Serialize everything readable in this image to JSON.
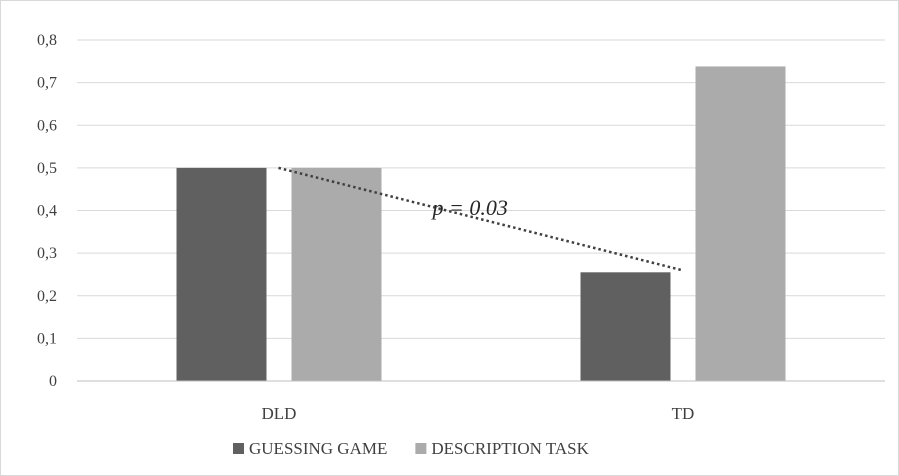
{
  "chart_data": {
    "type": "bar",
    "categories": [
      "DLD",
      "TD"
    ],
    "series": [
      {
        "name": "GUESSING GAME",
        "values": [
          0.5,
          0.255
        ],
        "color": "#606060"
      },
      {
        "name": "DESCRIPTION TASK",
        "values": [
          0.5,
          0.738
        ],
        "color": "#ababab"
      }
    ],
    "ylim": [
      0,
      0.8
    ],
    "yticks": [
      "0",
      "0,1",
      "0,2",
      "0,3",
      "0,4",
      "0,5",
      "0,6",
      "0,7",
      "0,8"
    ],
    "grid": true,
    "legend_position": "bottom",
    "annotation": {
      "text": "p = 0.03",
      "line_from": {
        "category": "DLD",
        "series": "GUESSING GAME",
        "value": 0.5
      },
      "line_to": {
        "category": "TD",
        "series": "GUESSING GAME",
        "value": 0.255
      },
      "line_style": "dotted",
      "color": "#404040"
    },
    "gridline_color": "#d9d9d9",
    "axis_color": "#bfbfbf"
  }
}
